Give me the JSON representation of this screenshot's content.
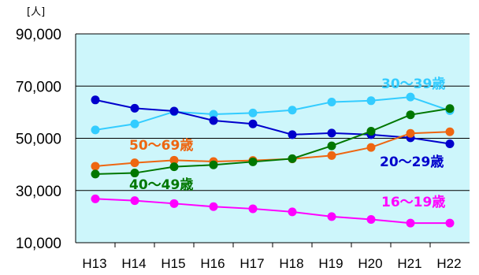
{
  "chart_data": {
    "type": "line",
    "unit_label": "[人]",
    "x": [
      "H13",
      "H14",
      "H15",
      "H16",
      "H17",
      "H18",
      "H19",
      "H20",
      "H21",
      "H22"
    ],
    "ylim": [
      10000,
      90000
    ],
    "yticks": [
      "90,000",
      "70,000",
      "50,000",
      "30,000",
      "10,000"
    ],
    "ytick_values": [
      90000,
      70000,
      50000,
      30000,
      10000
    ],
    "plot_background": "#cdf6fb",
    "series": [
      {
        "name": "30～39歳",
        "color": "#33ccff",
        "values": [
          53200,
          55500,
          60200,
          59200,
          59700,
          60800,
          63900,
          64400,
          65800,
          60600
        ]
      },
      {
        "name": "20～29歳",
        "color": "#0000cc",
        "values": [
          64700,
          61500,
          60400,
          56800,
          55500,
          51400,
          52000,
          51400,
          50200,
          47900
        ]
      },
      {
        "name": "50～69歳",
        "color": "#ee6611",
        "values": [
          39300,
          40600,
          41600,
          41100,
          41500,
          42100,
          43400,
          46500,
          51900,
          52500
        ]
      },
      {
        "name": "40～49歳",
        "color": "#007700",
        "values": [
          36300,
          36700,
          39100,
          39800,
          41000,
          42200,
          47100,
          52700,
          59000,
          61400
        ]
      },
      {
        "name": "16～19歳",
        "color": "#ff00ff",
        "values": [
          26800,
          26100,
          25000,
          23800,
          23000,
          21800,
          20000,
          18900,
          17500,
          17500
        ]
      }
    ]
  }
}
